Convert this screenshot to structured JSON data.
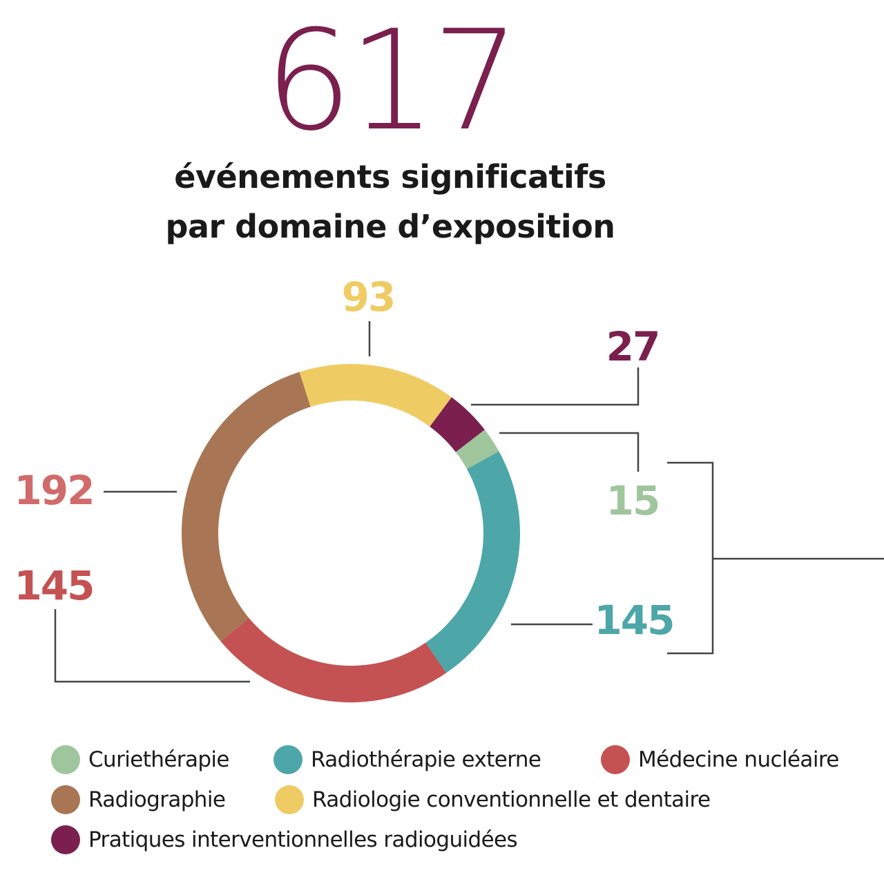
{
  "header": {
    "total": "617",
    "subtitle_line1": "événements significatifs",
    "subtitle_line2": "par domaine d’exposition"
  },
  "colors": {
    "total": "#7a1f4e",
    "curietherapie": "#9fc59c",
    "radiotherapie_externe": "#4da6a8",
    "medecine_nucleaire": "#c45252",
    "radiographie": "#a87654",
    "radiologie": "#efcb63",
    "pratiques_interventionnelles": "#7a1f4e",
    "label_192": "#d16b6b",
    "leader_line": "#444444"
  },
  "labels": {
    "radiologie": "93",
    "pratiques": "27",
    "curietherapie": "15",
    "radiotherapie": "145",
    "radiographie": "192",
    "medecine": "145"
  },
  "legend": {
    "items": [
      {
        "label": "Curiethérapie",
        "color": "#9fc59c"
      },
      {
        "label": "Radiothérapie externe",
        "color": "#4da6a8"
      },
      {
        "label": "Médecine nucléaire",
        "color": "#c45252"
      },
      {
        "label": "Radiographie",
        "color": "#a87654"
      },
      {
        "label": "Radiologie conventionnelle et dentaire",
        "color": "#efcb63"
      },
      {
        "label": "Pratiques interventionnelles radioguidées",
        "color": "#7a1f4e"
      }
    ]
  },
  "chart_data": {
    "type": "pie",
    "subtype": "donut",
    "title": "617 événements significatifs par domaine d’exposition",
    "total": 617,
    "categories": [
      "Radiologie conventionnelle et dentaire",
      "Pratiques interventionnelles radioguidées",
      "Curiethérapie",
      "Radiothérapie externe",
      "Médecine nucléaire",
      "Radiographie"
    ],
    "values": [
      93,
      27,
      15,
      145,
      145,
      192
    ],
    "colors": [
      "#efcb63",
      "#7a1f4e",
      "#9fc59c",
      "#4da6a8",
      "#c45252",
      "#a87654"
    ],
    "start_angle_deg": -17.7,
    "direction": "clockwise",
    "annotations": [
      "Bracket groups Curiethérapie (15) and Radiothérapie externe (145)"
    ],
    "legend_position": "bottom"
  }
}
